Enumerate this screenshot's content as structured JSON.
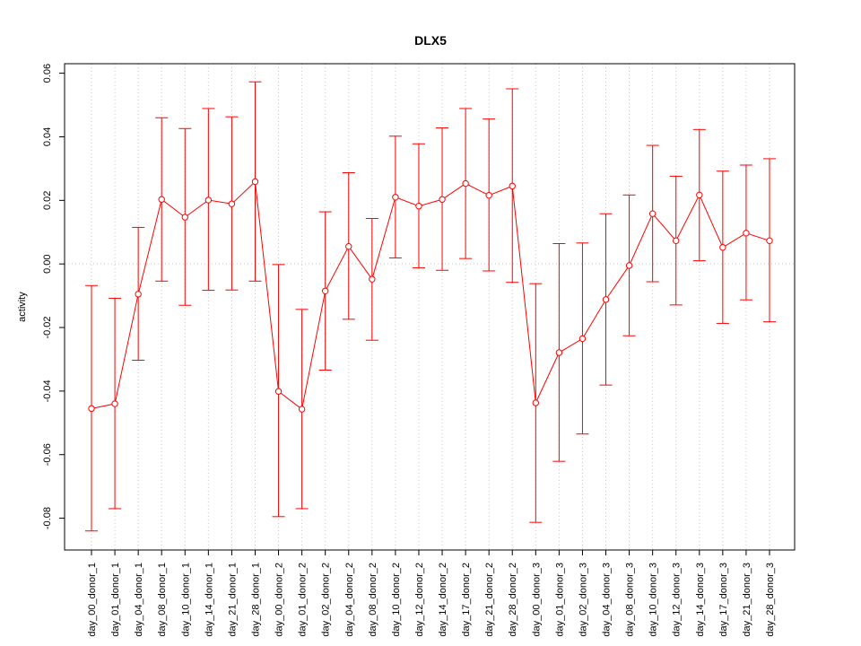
{
  "chart_data": {
    "type": "line",
    "title": "DLX5",
    "xlabel": "",
    "ylabel": "activity",
    "ylim": [
      -0.09,
      0.063
    ],
    "yticks": [
      -0.08,
      -0.06,
      -0.04,
      -0.02,
      0.0,
      0.02,
      0.04,
      0.06
    ],
    "ytick_labels": [
      "-0.08",
      "-0.06",
      "-0.04",
      "-0.02",
      "0.00",
      "0.02",
      "0.04",
      "0.06"
    ],
    "grid": true,
    "legend": "none",
    "color": "#ff0000",
    "categories": [
      "day_00_donor_1",
      "day_01_donor_1",
      "day_04_donor_1",
      "day_08_donor_1",
      "day_10_donor_1",
      "day_14_donor_1",
      "day_21_donor_1",
      "day_28_donor_1",
      "day_00_donor_2",
      "day_01_donor_2",
      "day_02_donor_2",
      "day_04_donor_2",
      "day_08_donor_2",
      "day_10_donor_2",
      "day_12_donor_2",
      "day_14_donor_2",
      "day_17_donor_2",
      "day_21_donor_2",
      "day_28_donor_2",
      "day_00_donor_3",
      "day_01_donor_3",
      "day_02_donor_3",
      "day_04_donor_3",
      "day_08_donor_3",
      "day_10_donor_3",
      "day_12_donor_3",
      "day_14_donor_3",
      "day_17_donor_3",
      "day_21_donor_3",
      "day_28_donor_3"
    ],
    "series": [
      {
        "values": [
          -0.0455,
          -0.044,
          -0.0095,
          0.0203,
          0.0147,
          0.0201,
          0.0189,
          0.0259,
          -0.0401,
          -0.0457,
          -0.0085,
          0.0055,
          -0.0048,
          0.021,
          0.0182,
          0.0203,
          0.0253,
          0.0216,
          0.0245,
          -0.0437,
          -0.0279,
          -0.0235,
          -0.0112,
          -0.0005,
          0.0158,
          0.0073,
          0.0217,
          0.0052,
          0.0097,
          0.0073
        ],
        "upper": [
          -0.0068,
          -0.0108,
          0.0115,
          0.046,
          0.0426,
          0.0489,
          0.0463,
          0.0573,
          -0.0002,
          -0.0143,
          0.0164,
          0.0287,
          0.0143,
          0.0402,
          0.0378,
          0.0428,
          0.0489,
          0.0456,
          0.0551,
          -0.0062,
          0.0064,
          0.0066,
          0.0158,
          0.0217,
          0.0373,
          0.0276,
          0.0423,
          0.0292,
          0.0311,
          0.0331
        ],
        "lower": [
          -0.084,
          -0.077,
          -0.0303,
          -0.0054,
          -0.013,
          -0.0083,
          -0.0082,
          -0.0054,
          -0.0795,
          -0.077,
          -0.0334,
          -0.0174,
          -0.024,
          0.0019,
          -0.0012,
          -0.002,
          0.0017,
          -0.0022,
          -0.0058,
          -0.0813,
          -0.0621,
          -0.0535,
          -0.0381,
          -0.0226,
          -0.0056,
          -0.0129,
          0.001,
          -0.0187,
          -0.0113,
          -0.0182
        ]
      }
    ]
  }
}
